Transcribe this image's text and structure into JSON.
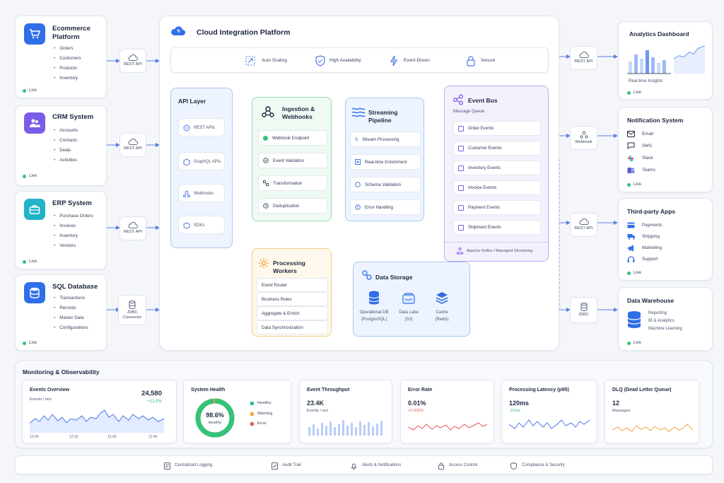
{
  "sources": [
    {
      "title_l1": "Ecommerce",
      "title_l2": "Platform",
      "items": [
        "Orders",
        "Customers",
        "Products",
        "Inventory"
      ],
      "status": "Live",
      "connector": "REST API",
      "icon": "cart-icon",
      "color": "#2f6fe8"
    },
    {
      "title_l1": "CRM System",
      "title_l2": "",
      "items": [
        "Accounts",
        "Contacts",
        "Deals",
        "Activities"
      ],
      "status": "Live",
      "connector": "REST API",
      "icon": "users-icon",
      "color": "#7a5ce6"
    },
    {
      "title_l1": "ERP System",
      "title_l2": "",
      "items": [
        "Purchase Orders",
        "Invoices",
        "Inventory",
        "Vendors"
      ],
      "status": "Live",
      "connector": "REST API",
      "icon": "briefcase-icon",
      "color": "#21b3c7"
    },
    {
      "title_l1": "SQL Database",
      "title_l2": "",
      "items": [
        "Transactions",
        "Records",
        "Master Data",
        "Configurations"
      ],
      "status": "Live",
      "connector_l1": "JDBC",
      "connector_l2": "Connector",
      "icon": "database-icon",
      "color": "#2f6fe8"
    }
  ],
  "platform": {
    "title": "Cloud Integration Platform",
    "features": [
      "Auto Scaling",
      "High Availability",
      "Event-Driven",
      "Secure"
    ],
    "api_layer": {
      "title": "API Layer",
      "items": [
        "REST APIs",
        "GraphQL APIs",
        "Webhooks",
        "SDKs"
      ]
    },
    "ingestion": {
      "title_l1": "Ingestion &",
      "title_l2": "Webhooks",
      "items": [
        "Webhook Endpoint",
        "Event Validation",
        "Transformation",
        "Deduplication"
      ]
    },
    "streaming": {
      "title_l1": "Streaming",
      "title_l2": "Pipeline",
      "items": [
        "Stream Processing",
        "Real-time Enrichment",
        "Schema Validation",
        "Error Handling"
      ]
    },
    "event_bus": {
      "title": "Event Bus",
      "subtitle": "Message Queue",
      "items": [
        "Order Events",
        "Customer Events",
        "Inventory Events",
        "Invoice Events",
        "Payment Events",
        "Shipment Events"
      ],
      "footer": "Apache Kafka / Managed Streaming"
    },
    "processing": {
      "title_l1": "Processing",
      "title_l2": "Workers",
      "items": [
        "Event Router",
        "Business Rules",
        "Aggregate & Enrich",
        "Data Synchronization"
      ]
    },
    "storage": {
      "title": "Data Storage",
      "items": [
        {
          "l1": "Operational DB",
          "l2": "(PostgreSQL)"
        },
        {
          "l1": "Data Lake",
          "l2": "(S3)"
        },
        {
          "l1": "Cache",
          "l2": "(Redis)"
        }
      ]
    }
  },
  "destinations": {
    "analytics": {
      "title": "Analytics Dashboard",
      "caption": "Real-time Insights",
      "status": "Live",
      "connector": "REST API"
    },
    "notification": {
      "title": "Notification System",
      "items": [
        "Email",
        "SMS",
        "Slack",
        "Teams"
      ],
      "status": "Live",
      "connector": "Webhook"
    },
    "thirdparty": {
      "title": "Third-party Apps",
      "items": [
        "Payments",
        "Shipping",
        "Marketing",
        "Support"
      ],
      "status": "Live",
      "connector": "REST API"
    },
    "warehouse": {
      "title": "Data Warehouse",
      "items": [
        "Reporting",
        "BI & Analytics",
        "Machine Learning"
      ],
      "status": "Live",
      "connector": "JDBC"
    }
  },
  "monitoring": {
    "title": "Monitoring & Observability",
    "events_overview": {
      "title": "Events Overview",
      "value": "24,580",
      "delta": "+12.5%",
      "unit": "Events / min",
      "ticks": [
        "12:00",
        "12:15",
        "12:30",
        "12:45"
      ]
    },
    "system_health": {
      "title": "System Health",
      "value": "98.6%",
      "label": "Healthy",
      "legend": [
        "Healthy",
        "Warning",
        "Error"
      ]
    },
    "throughput": {
      "title": "Event Throughput",
      "value": "23.4K",
      "unit": "Events / sec"
    },
    "error_rate": {
      "title": "Error Rate",
      "value": "0.01%",
      "delta": "+0.005%"
    },
    "latency": {
      "title": "Processing Latency (p95)",
      "value": "120ms",
      "delta": "-15ms"
    },
    "dlq": {
      "title": "DLQ (Dead Letter Queue)",
      "value": "12",
      "unit": "Messages"
    }
  },
  "footer": [
    "Centralized Logging",
    "Audit Trail",
    "Alerts & Notifications",
    "Access Control",
    "Compliance & Security"
  ],
  "colors": {
    "accent": "#2f6fe8",
    "green": "#34c27a",
    "orange": "#f2a33a",
    "purple": "#7a5ce6",
    "red": "#e85a5a"
  }
}
